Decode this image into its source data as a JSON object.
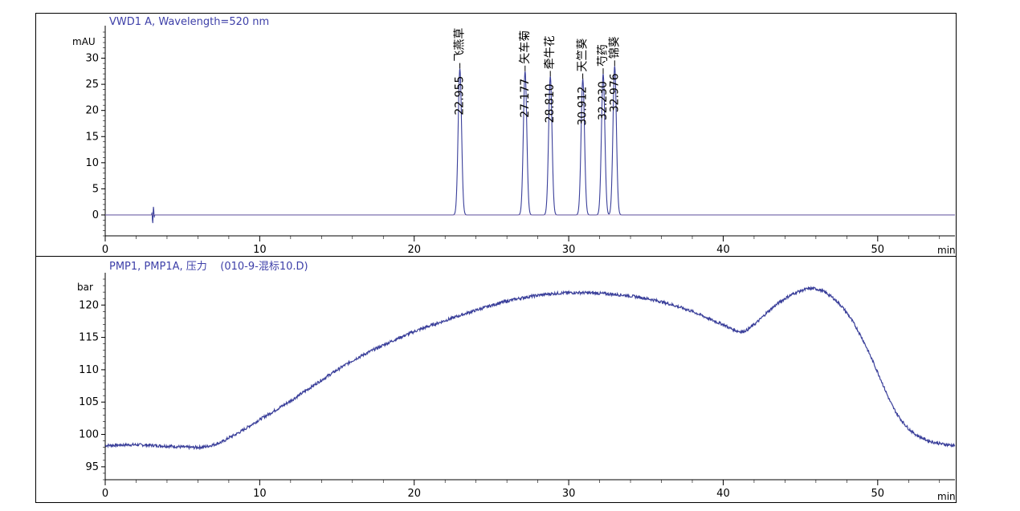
{
  "colors": {
    "trace": "#3a3f9a",
    "title": "#3d3fa8",
    "axis": "#000000",
    "panel_border": "#000000"
  },
  "chart_data": [
    {
      "type": "line",
      "title": "VWD1 A, Wavelength=520 nm",
      "ylabel": "mAU",
      "xlabel": "min",
      "xlim": [
        0,
        55
      ],
      "ylim": [
        -4,
        35
      ],
      "x_ticks": [
        0,
        10,
        20,
        30,
        40,
        50
      ],
      "y_ticks": [
        0,
        5,
        10,
        15,
        20,
        25,
        30
      ],
      "grid": false,
      "baseline": 0,
      "disturbance": {
        "x": 3.1,
        "y_min": -1.8,
        "y_max": 1.8
      },
      "peaks": [
        {
          "rt": 22.955,
          "rt_label": "22.955",
          "name": "飞燕草",
          "height": 28
        },
        {
          "rt": 27.177,
          "rt_label": "27.177",
          "name": "矢车菊",
          "height": 27.5
        },
        {
          "rt": 28.81,
          "rt_label": "28.810",
          "name": "牵牛花",
          "height": 26.5
        },
        {
          "rt": 30.912,
          "rt_label": "30.912",
          "name": "天竺葵",
          "height": 26
        },
        {
          "rt": 32.23,
          "rt_label": "32.230",
          "name": "芍药",
          "height": 27
        },
        {
          "rt": 32.976,
          "rt_label": "32.976",
          "name": "锦葵",
          "height": 28.5
        }
      ]
    },
    {
      "type": "line",
      "title": "PMP1, PMP1A, 压力    (010-9-混标10.D)",
      "ylabel": "bar",
      "xlabel": "min",
      "xlim": [
        0,
        55
      ],
      "ylim": [
        93,
        124
      ],
      "x_ticks": [
        0,
        10,
        20,
        30,
        40,
        50
      ],
      "y_ticks": [
        95,
        100,
        105,
        110,
        115,
        120
      ],
      "grid": false,
      "series": [
        {
          "x": [
            0,
            2,
            4,
            6,
            7,
            8,
            10,
            12,
            14,
            16,
            18,
            20,
            22,
            24,
            26,
            28,
            30,
            32,
            34,
            36,
            38,
            40,
            41.2,
            42,
            43,
            44,
            45,
            46,
            47,
            48,
            49,
            50,
            51,
            52,
            53,
            54,
            55
          ],
          "y": [
            98.3,
            98.4,
            98.2,
            98.0,
            98.4,
            99.5,
            102.3,
            105.2,
            108.4,
            111.4,
            113.8,
            115.9,
            117.6,
            119.2,
            120.6,
            121.5,
            121.9,
            121.8,
            121.4,
            120.5,
            119.0,
            117.0,
            115.9,
            117.0,
            119.2,
            121.0,
            122.2,
            122.5,
            121.3,
            118.8,
            114.8,
            109.6,
            104.2,
            100.9,
            99.3,
            98.6,
            98.3
          ]
        }
      ]
    }
  ]
}
